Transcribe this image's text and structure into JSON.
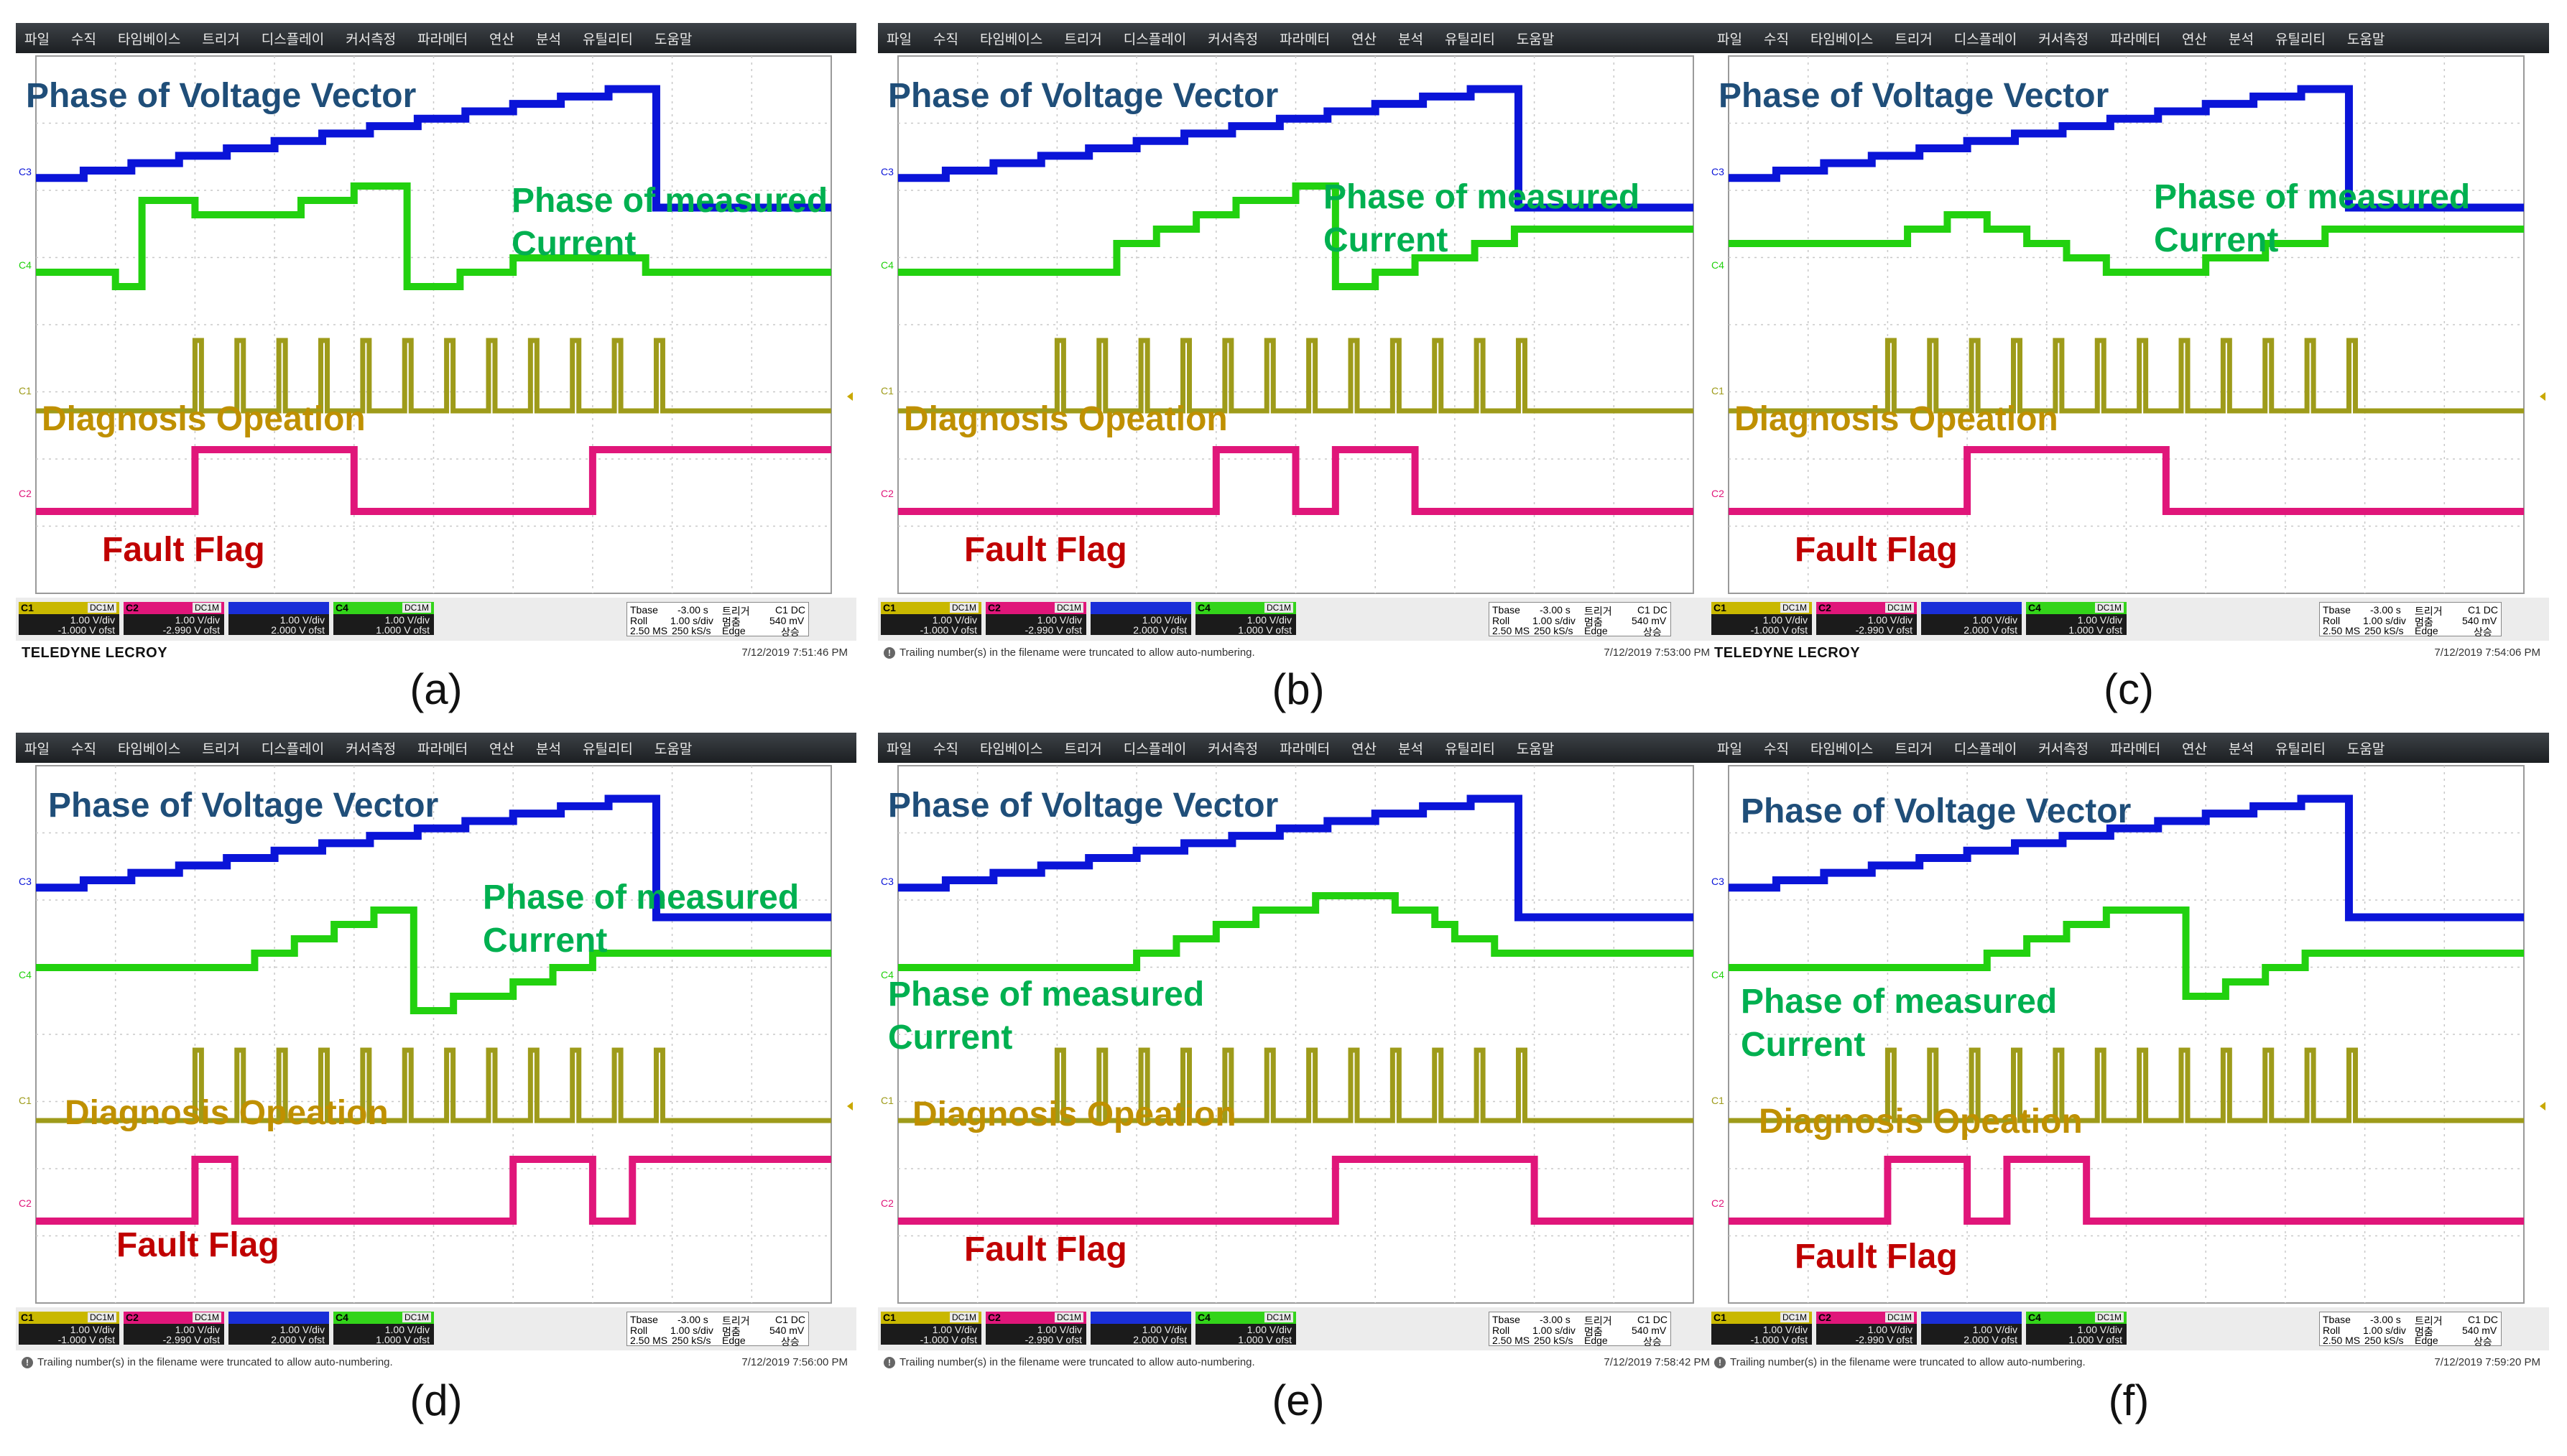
{
  "menu": [
    "파일",
    "수직",
    "타임베이스",
    "트리거",
    "디스플레이",
    "커서측정",
    "파라메터",
    "연산",
    "분석",
    "유틸리티",
    "도움말"
  ],
  "labels": {
    "voltage": "Phase of Voltage Vector",
    "current_line1": "Phase of measured",
    "current_line2": "Current",
    "diagnosis": "Diagnosis Opeation",
    "fault": "Fault Flag"
  },
  "channels": {
    "c1": {
      "name": "C1",
      "coupling": "DC1M",
      "vdiv": "1.00 V/div",
      "offset": "-1.000 V ofst"
    },
    "c2": {
      "name": "C2",
      "coupling": "DC1M",
      "vdiv": "1.00 V/div",
      "offset": "-2.990 V ofst"
    },
    "c3": {
      "name": "",
      "coupling": "",
      "vdiv": "1.00 V/div",
      "offset": "2.000 V ofst"
    },
    "c4": {
      "name": "C4",
      "coupling": "DC1M",
      "vdiv": "1.00 V/div",
      "offset": "1.000 V ofst"
    }
  },
  "timebase": {
    "label": "Tbase",
    "delay": "-3.00 s",
    "mode": "Roll",
    "tdiv": "1.00 s/div",
    "samples": "2.50 MS",
    "rate": "250 kS/s",
    "trig_label": "트리거",
    "trig_ch": "C1 DC",
    "trig_mode": "멈춤",
    "trig_level": "540 mV",
    "trig_type": "Edge",
    "trig_slope": "상승"
  },
  "brand": "TELEDYNE LECROY",
  "warning": "Trailing number(s) in the filename were truncated to allow auto-numbering.",
  "colors": {
    "voltage": "#0a14d8",
    "current": "#22d10f",
    "diagnosis": "#9e9b1a",
    "fault": "#e0167a"
  },
  "panels": [
    {
      "caption": "(a)",
      "timestamp": "7/12/2019 7:51:46 PM",
      "footer": "brand",
      "voltage_steps": [
        4,
        5,
        6,
        7,
        8,
        9,
        10,
        11,
        12,
        13,
        14,
        15,
        16,
        0
      ],
      "current": [
        2,
        2,
        2,
        1,
        7,
        7,
        6,
        6,
        6,
        6,
        7,
        7,
        8,
        8,
        1,
        1,
        2,
        2,
        3,
        3,
        3,
        3,
        3,
        2,
        2,
        2,
        2,
        2,
        2,
        2
      ],
      "fault_edges": [
        0,
        0,
        0,
        0,
        1,
        1,
        1,
        1,
        0,
        0,
        0,
        0,
        0,
        0,
        1,
        1,
        1,
        1,
        1,
        1
      ]
    },
    {
      "caption": "(b)",
      "timestamp": "7/12/2019 7:53:00 PM",
      "footer": "warning",
      "voltage_steps": [
        4,
        5,
        6,
        7,
        8,
        9,
        10,
        11,
        12,
        13,
        14,
        15,
        16,
        0
      ],
      "current": [
        2,
        2,
        2,
        2,
        2,
        2,
        2,
        2,
        2,
        2,
        2,
        4,
        4,
        5,
        5,
        6,
        6,
        7,
        7,
        7,
        8,
        8,
        1,
        1,
        2,
        2,
        3,
        3,
        3,
        4,
        4,
        5,
        5,
        5,
        5,
        5,
        5,
        5,
        5,
        5
      ],
      "fault_edges": [
        0,
        0,
        0,
        0,
        0,
        0,
        0,
        0,
        1,
        1,
        0,
        1,
        1,
        0,
        0,
        0,
        0,
        0,
        0,
        0
      ]
    },
    {
      "caption": "(c)",
      "timestamp": "7/12/2019 7:54:06 PM",
      "footer": "brand",
      "voltage_steps": [
        4,
        5,
        6,
        7,
        8,
        9,
        10,
        11,
        12,
        13,
        14,
        15,
        16,
        0
      ],
      "current": [
        4,
        4,
        4,
        4,
        4,
        4,
        4,
        4,
        4,
        5,
        5,
        6,
        6,
        5,
        5,
        4,
        4,
        3,
        3,
        2,
        2,
        2,
        2,
        2,
        3,
        3,
        3,
        4,
        4,
        4,
        5,
        5,
        5,
        5,
        5,
        5,
        5,
        5,
        5,
        5
      ],
      "fault_edges": [
        0,
        0,
        0,
        0,
        0,
        0,
        1,
        1,
        1,
        1,
        1,
        0,
        0,
        0,
        0,
        0,
        0,
        0,
        0,
        0
      ]
    },
    {
      "caption": "(d)",
      "timestamp": "7/12/2019 7:56:00 PM",
      "footer": "warning",
      "voltage_steps": [
        4,
        5,
        6,
        7,
        8,
        9,
        10,
        11,
        12,
        13,
        14,
        15,
        16,
        0
      ],
      "current": [
        3,
        3,
        3,
        3,
        3,
        3,
        3,
        3,
        3,
        3,
        3,
        4,
        4,
        5,
        5,
        6,
        6,
        7,
        7,
        0,
        0,
        1,
        1,
        1,
        2,
        2,
        3,
        3,
        4,
        4,
        4,
        4,
        4,
        4,
        4,
        4,
        4,
        4,
        4,
        4
      ],
      "fault_edges": [
        0,
        0,
        0,
        0,
        1,
        0,
        0,
        0,
        0,
        0,
        0,
        0,
        1,
        1,
        0,
        1,
        1,
        1,
        1,
        1
      ]
    },
    {
      "caption": "(e)",
      "timestamp": "7/12/2019 7:58:42 PM",
      "footer": "warning",
      "voltage_steps": [
        4,
        5,
        6,
        7,
        8,
        9,
        10,
        11,
        12,
        13,
        14,
        15,
        16,
        0
      ],
      "current": [
        3,
        3,
        3,
        3,
        3,
        3,
        3,
        3,
        3,
        3,
        3,
        3,
        4,
        4,
        5,
        5,
        6,
        6,
        7,
        7,
        7,
        8,
        8,
        8,
        8,
        7,
        7,
        6,
        5,
        5,
        4,
        4,
        4,
        4,
        4,
        4,
        4,
        4,
        4,
        4
      ],
      "fault_edges": [
        0,
        0,
        0,
        0,
        0,
        0,
        0,
        0,
        0,
        0,
        0,
        1,
        1,
        1,
        1,
        1,
        0,
        0,
        0,
        0
      ]
    },
    {
      "caption": "(f)",
      "timestamp": "7/12/2019 7:59:20 PM",
      "footer": "warning",
      "voltage_steps": [
        4,
        5,
        6,
        7,
        8,
        9,
        10,
        11,
        12,
        13,
        14,
        15,
        16,
        0
      ],
      "current": [
        3,
        3,
        3,
        3,
        3,
        3,
        3,
        3,
        3,
        3,
        3,
        3,
        3,
        4,
        4,
        5,
        5,
        6,
        6,
        7,
        7,
        7,
        7,
        1,
        1,
        2,
        2,
        3,
        3,
        4,
        4,
        4,
        4,
        4,
        4,
        4,
        4,
        4,
        4,
        4
      ],
      "fault_edges": [
        0,
        0,
        0,
        0,
        1,
        1,
        0,
        1,
        1,
        0,
        0,
        0,
        0,
        0,
        0,
        0,
        0,
        0,
        0,
        0
      ]
    }
  ]
}
